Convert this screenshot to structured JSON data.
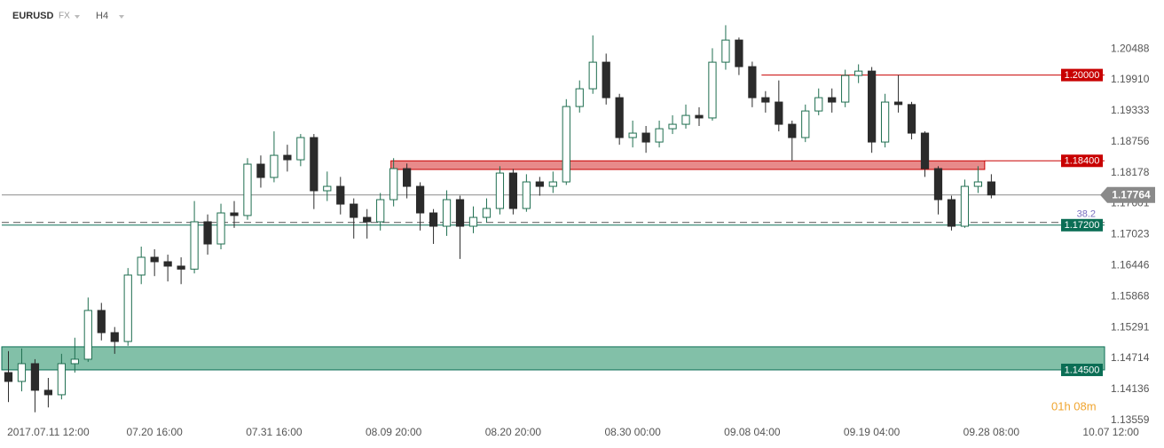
{
  "chart_data": {
    "type": "candlestick",
    "symbol": "EURUSD",
    "market": "FX",
    "timeframe": "H4",
    "timer": "01h 08m",
    "up_color": "#1f6e50",
    "down_color": "#2b2b2b",
    "open": [
      1.1445,
      1.14285,
      1.14616,
      1.1412,
      1.14037,
      1.14616,
      1.14699,
      1.15609,
      1.15195,
      1.1503,
      1.1627,
      1.16601,
      1.16518,
      1.16436,
      1.1638,
      1.17263,
      1.16849,
      1.17428,
      1.1738,
      1.18338,
      1.1809,
      1.18503,
      1.1842,
      1.18834,
      1.17842,
      1.17924,
      1.17593,
      1.17345,
      1.17263,
      1.17676,
      1.18255,
      1.17924,
      1.17428,
      1.1718,
      1.17676,
      1.1718,
      1.17345,
      1.17511,
      1.18172,
      1.17511,
      1.18007,
      1.17924,
      1.18007,
      1.19413,
      1.19744,
      1.2024,
      1.19578,
      1.18834,
      1.18917,
      1.18751,
      1.18999,
      1.19082,
      1.19247,
      1.192,
      1.2024,
      1.20653,
      1.20157,
      1.19578,
      1.19496,
      1.19082,
      1.18834,
      1.1933,
      1.19578,
      1.19496,
      1.19992,
      1.20074,
      1.18751,
      1.19496,
      1.1945,
      1.18917,
      1.18255,
      1.17676,
      1.1718,
      1.17924,
      1.18007
    ],
    "high": [
      1.1485,
      1.149,
      1.147,
      1.1435,
      1.148,
      1.151,
      1.1585,
      1.1575,
      1.153,
      1.164,
      1.168,
      1.1675,
      1.1665,
      1.166,
      1.1765,
      1.174,
      1.176,
      1.1765,
      1.1845,
      1.185,
      1.1895,
      1.187,
      1.189,
      1.189,
      1.182,
      1.181,
      1.177,
      1.175,
      1.178,
      1.1845,
      1.1835,
      1.18,
      1.175,
      1.1785,
      1.1775,
      1.1755,
      1.177,
      1.183,
      1.1825,
      1.1815,
      1.181,
      1.182,
      1.1955,
      1.199,
      1.2074,
      1.204,
      1.1965,
      1.1915,
      1.1905,
      1.1915,
      1.1925,
      1.1945,
      1.194,
      1.205,
      1.2093,
      1.207,
      1.2025,
      1.197,
      1.199,
      1.1915,
      1.1945,
      1.1975,
      1.1975,
      1.201,
      1.202,
      1.2015,
      1.1965,
      1.2,
      1.195,
      1.1895,
      1.183,
      1.1775,
      1.1805,
      1.183,
      1.1815
    ],
    "low": [
      1.139,
      1.141,
      1.1371,
      1.138,
      1.1395,
      1.1445,
      1.1465,
      1.1505,
      1.148,
      1.1495,
      1.161,
      1.1625,
      1.1615,
      1.161,
      1.163,
      1.1665,
      1.1675,
      1.1715,
      1.173,
      1.179,
      1.18,
      1.182,
      1.183,
      1.175,
      1.1765,
      1.174,
      1.1695,
      1.1695,
      1.171,
      1.1755,
      1.177,
      1.171,
      1.1685,
      1.17,
      1.1657,
      1.1705,
      1.1725,
      1.174,
      1.174,
      1.1745,
      1.1775,
      1.178,
      1.1795,
      1.193,
      1.1965,
      1.1945,
      1.187,
      1.1865,
      1.1855,
      1.1865,
      1.189,
      1.19,
      1.1905,
      1.1915,
      1.201,
      1.2,
      1.194,
      1.193,
      1.1895,
      1.184,
      1.1875,
      1.1925,
      1.193,
      1.194,
      1.1985,
      1.1855,
      1.1865,
      1.193,
      1.188,
      1.181,
      1.174,
      1.171,
      1.1715,
      1.178,
      1.177
    ],
    "close": [
      1.14285,
      1.14616,
      1.1412,
      1.14037,
      1.14616,
      1.14699,
      1.15609,
      1.15195,
      1.1503,
      1.1627,
      1.16601,
      1.16518,
      1.16436,
      1.1638,
      1.17263,
      1.16849,
      1.17428,
      1.1738,
      1.18338,
      1.1809,
      1.18503,
      1.1842,
      1.18834,
      1.17842,
      1.17924,
      1.17593,
      1.17345,
      1.17263,
      1.17676,
      1.18255,
      1.17924,
      1.17428,
      1.1718,
      1.17676,
      1.1718,
      1.17345,
      1.17511,
      1.18172,
      1.17511,
      1.18007,
      1.17924,
      1.18007,
      1.19413,
      1.19744,
      1.2024,
      1.19578,
      1.18834,
      1.18917,
      1.18751,
      1.18999,
      1.19082,
      1.19247,
      1.192,
      1.2024,
      1.20653,
      1.20157,
      1.19578,
      1.19496,
      1.19082,
      1.18834,
      1.1933,
      1.19578,
      1.19496,
      1.19992,
      1.20074,
      1.18751,
      1.19496,
      1.1945,
      1.18917,
      1.18255,
      1.17676,
      1.1718,
      1.17924,
      1.18007,
      1.17764
    ],
    "xlim": [
      -0.5,
      87
    ],
    "xticks": [
      {
        "value": 3,
        "label": "2017.07.11 12:00"
      },
      {
        "value": 11,
        "label": "07.20 16:00"
      },
      {
        "value": 20,
        "label": "07.31 16:00"
      },
      {
        "value": 29,
        "label": "08.09 20:00"
      },
      {
        "value": 38,
        "label": "08.20 20:00"
      },
      {
        "value": 47,
        "label": "08.30 00:00"
      },
      {
        "value": 56,
        "label": "09.08 04:00"
      },
      {
        "value": 65,
        "label": "09.19 04:00"
      },
      {
        "value": 74,
        "label": "09.28 08:00"
      },
      {
        "value": 83,
        "label": "10.07 12:00"
      }
    ],
    "ylim": [
      1.1349,
      1.214
    ],
    "yticks": [
      1.20488,
      {
        "value": 1.1991,
        "label": "1.19910"
      },
      1.19333,
      1.18756,
      1.18178,
      1.17601,
      1.17023,
      1.16446,
      1.15868,
      1.15291,
      1.14714,
      1.14136,
      1.13559
    ],
    "levels": [
      {
        "kind": "line",
        "value": 1.2,
        "label": "1.20000",
        "color": "#c80000",
        "x_start": 56.7
      },
      {
        "kind": "zone",
        "value": 1.184,
        "bottom": 1.18239,
        "label": "1.18400",
        "color": "#c80000",
        "fill": "#e88a8a",
        "x_start": 28.8,
        "x_end": 73.5
      },
      {
        "kind": "line",
        "value": 1.172,
        "label": "1.17200",
        "color": "#0b6e55"
      },
      {
        "kind": "zone",
        "value": 1.145,
        "top": 1.14931,
        "label": "1.14500",
        "color": "#0b6e55",
        "fill": "#82c0a8"
      }
    ],
    "fib": {
      "label": "38.2",
      "value": 1.1725,
      "color": "#7a6fc0"
    },
    "current": {
      "value": 1.17764,
      "label": "1.17764",
      "color": "#8a8a8a"
    }
  }
}
